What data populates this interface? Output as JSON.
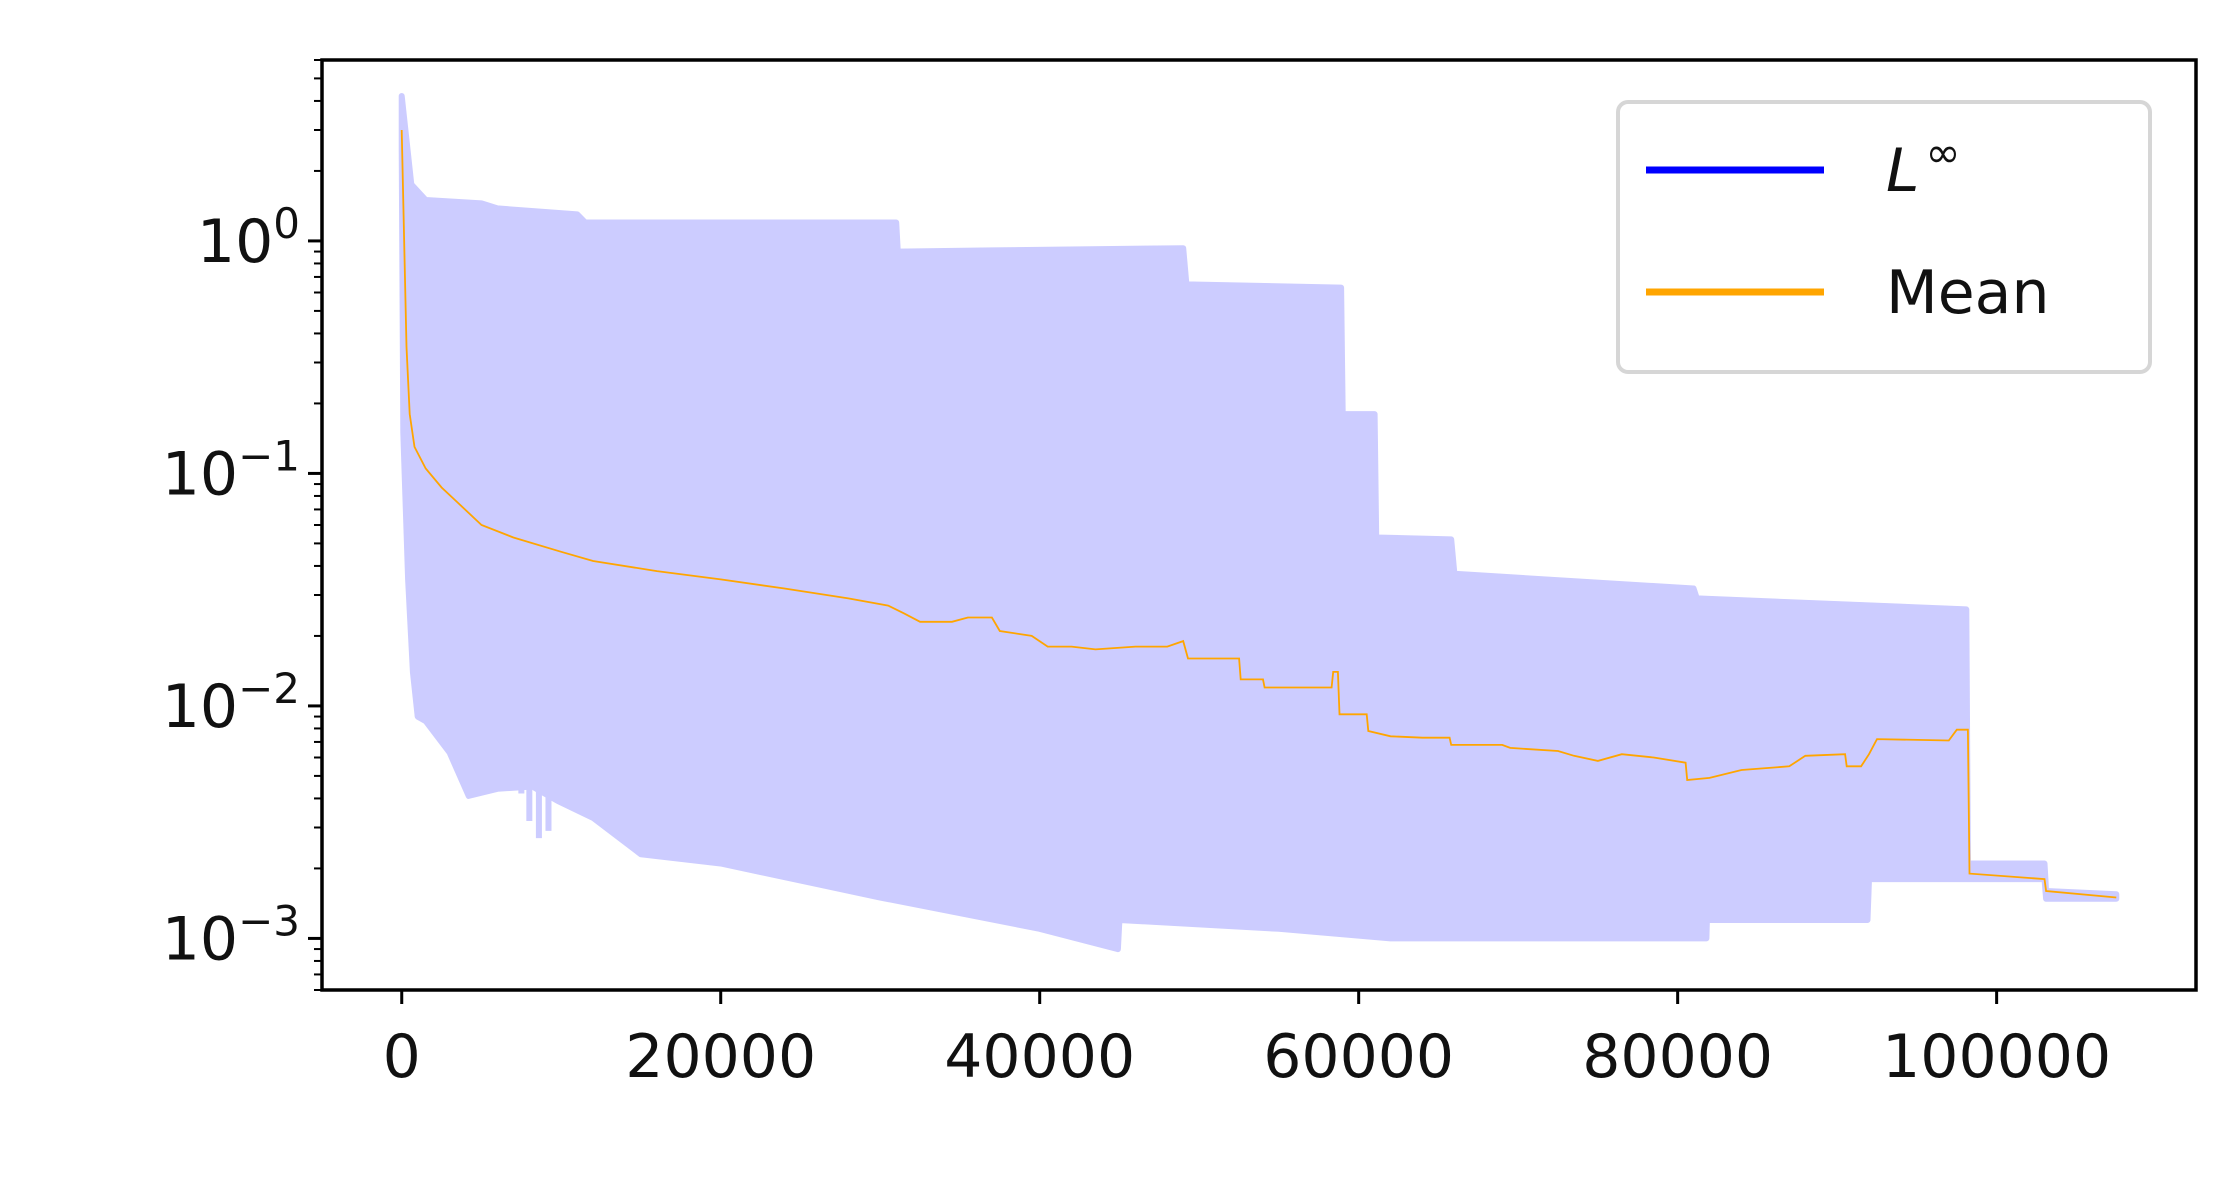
{
  "chart_data": {
    "type": "area",
    "title": "",
    "xlabel": "",
    "ylabel": "",
    "x_scale": "linear",
    "y_scale": "log",
    "xlim": [
      -5000,
      112500
    ],
    "ylim": [
      0.0006,
      6
    ],
    "x_ticks": [
      0,
      20000,
      40000,
      60000,
      80000,
      100000
    ],
    "x_tick_labels": [
      "0",
      "20000",
      "40000",
      "60000",
      "80000",
      "100000"
    ],
    "y_ticks": [
      {
        "value": 1,
        "base": "10",
        "exp": "0"
      },
      {
        "value": 0.1,
        "base": "10",
        "exp": "−1"
      },
      {
        "value": 0.01,
        "base": "10",
        "exp": "−2"
      },
      {
        "value": 0.001,
        "base": "10",
        "exp": "−3"
      }
    ],
    "grid": false,
    "legend_position": "top-right",
    "legend": [
      {
        "label_base": "L",
        "label_sup": "∞",
        "color": "#0000ff"
      },
      {
        "label_base": "Mean",
        "label_sup": "",
        "color": "#ffa500"
      }
    ],
    "series": [
      {
        "name": "L∞",
        "kind": "band",
        "color": "#ccccff",
        "upper": [
          [
            0,
            4.2
          ],
          [
            600,
            1.75
          ],
          [
            1500,
            1.5
          ],
          [
            5000,
            1.45
          ],
          [
            6000,
            1.38
          ],
          [
            11000,
            1.3
          ],
          [
            11500,
            1.2
          ],
          [
            31000,
            1.2
          ],
          [
            31100,
            0.9
          ],
          [
            37000,
            0.91
          ],
          [
            49000,
            0.93
          ],
          [
            49200,
            0.65
          ],
          [
            58900,
            0.63
          ],
          [
            59000,
            0.18
          ],
          [
            61000,
            0.18
          ],
          [
            61100,
            0.053
          ],
          [
            65800,
            0.052
          ],
          [
            66000,
            0.037
          ],
          [
            81000,
            0.032
          ],
          [
            81200,
            0.029
          ],
          [
            98100,
            0.026
          ],
          [
            98200,
            0.0021
          ],
          [
            103000,
            0.0021
          ],
          [
            103100,
            0.0016
          ],
          [
            107500,
            0.00155
          ]
        ],
        "lower": [
          [
            107500,
            0.00148
          ],
          [
            103100,
            0.00148
          ],
          [
            103000,
            0.0018
          ],
          [
            98200,
            0.0018
          ],
          [
            98100,
            0.0018
          ],
          [
            92000,
            0.0018
          ],
          [
            91900,
            0.0012
          ],
          [
            82000,
            0.0012
          ],
          [
            81900,
            0.0018
          ],
          [
            81800,
            0.001
          ],
          [
            62000,
            0.001
          ],
          [
            55000,
            0.0011
          ],
          [
            45000,
            0.0012
          ],
          [
            44900,
            0.0009
          ],
          [
            40000,
            0.0011
          ],
          [
            30000,
            0.0015
          ],
          [
            20000,
            0.0021
          ],
          [
            15000,
            0.0023
          ],
          [
            12000,
            0.0033
          ],
          [
            9800,
            0.0039
          ],
          [
            8700,
            0.0043
          ],
          [
            8200,
            0.0045
          ],
          [
            6000,
            0.0044
          ],
          [
            4200,
            0.0041
          ],
          [
            3000,
            0.0063
          ],
          [
            1500,
            0.0086
          ],
          [
            1000,
            0.009
          ],
          [
            700,
            0.014
          ],
          [
            400,
            0.035
          ],
          [
            100,
            0.15
          ],
          [
            0,
            2.5
          ]
        ],
        "spikes": [
          {
            "x": 7500,
            "from": 0.0045,
            "to": 0.0042
          },
          {
            "x": 8000,
            "from": 0.0045,
            "to": 0.0032
          },
          {
            "x": 8600,
            "from": 0.0045,
            "to": 0.0027
          },
          {
            "x": 9200,
            "from": 0.0045,
            "to": 0.0029
          }
        ]
      },
      {
        "name": "Mean",
        "kind": "line",
        "color": "#ffa500",
        "points": [
          [
            0,
            3.0
          ],
          [
            300,
            0.35
          ],
          [
            500,
            0.18
          ],
          [
            800,
            0.13
          ],
          [
            1500,
            0.105
          ],
          [
            2500,
            0.087
          ],
          [
            3500,
            0.075
          ],
          [
            5000,
            0.06
          ],
          [
            7000,
            0.053
          ],
          [
            10000,
            0.046
          ],
          [
            12000,
            0.042
          ],
          [
            16000,
            0.038
          ],
          [
            20000,
            0.035
          ],
          [
            24000,
            0.032
          ],
          [
            28000,
            0.029
          ],
          [
            30500,
            0.027
          ],
          [
            31500,
            0.025
          ],
          [
            32500,
            0.023
          ],
          [
            34500,
            0.023
          ],
          [
            35500,
            0.024
          ],
          [
            37000,
            0.024
          ],
          [
            37500,
            0.021
          ],
          [
            39500,
            0.02
          ],
          [
            40500,
            0.018
          ],
          [
            42000,
            0.018
          ],
          [
            43500,
            0.0175
          ],
          [
            46000,
            0.018
          ],
          [
            48000,
            0.018
          ],
          [
            49000,
            0.019
          ],
          [
            49300,
            0.016
          ],
          [
            52500,
            0.016
          ],
          [
            52600,
            0.013
          ],
          [
            54000,
            0.013
          ],
          [
            54100,
            0.012
          ],
          [
            58300,
            0.012
          ],
          [
            58400,
            0.014
          ],
          [
            58700,
            0.014
          ],
          [
            58800,
            0.0092
          ],
          [
            60500,
            0.0092
          ],
          [
            60600,
            0.0078
          ],
          [
            62000,
            0.0074
          ],
          [
            64000,
            0.0073
          ],
          [
            65700,
            0.0073
          ],
          [
            65800,
            0.0068
          ],
          [
            69000,
            0.0068
          ],
          [
            69500,
            0.0066
          ],
          [
            72500,
            0.0064
          ],
          [
            73500,
            0.0061
          ],
          [
            75000,
            0.0058
          ],
          [
            76500,
            0.0062
          ],
          [
            78500,
            0.006
          ],
          [
            80500,
            0.0057
          ],
          [
            80600,
            0.0048
          ],
          [
            82000,
            0.0049
          ],
          [
            84000,
            0.0053
          ],
          [
            87000,
            0.0055
          ],
          [
            88000,
            0.0061
          ],
          [
            90500,
            0.0062
          ],
          [
            90600,
            0.0055
          ],
          [
            91500,
            0.0055
          ],
          [
            92000,
            0.0062
          ],
          [
            92500,
            0.0072
          ],
          [
            97000,
            0.0071
          ],
          [
            97500,
            0.0079
          ],
          [
            98200,
            0.0079
          ],
          [
            98300,
            0.0019
          ],
          [
            103000,
            0.0018
          ],
          [
            103100,
            0.0016
          ],
          [
            107500,
            0.0015
          ]
        ]
      }
    ]
  }
}
